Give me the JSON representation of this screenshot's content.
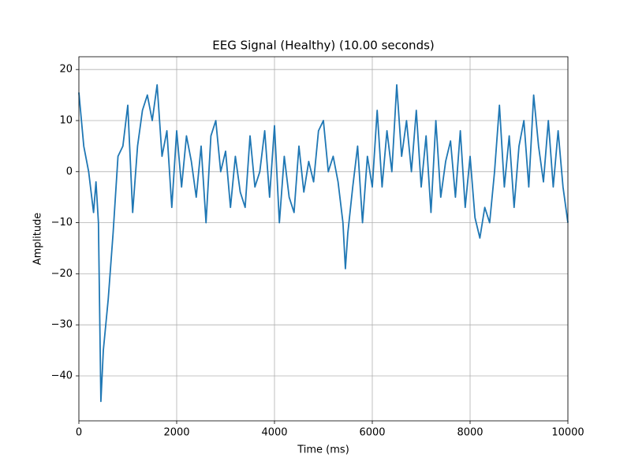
{
  "chart_data": {
    "type": "line",
    "title": "EEG Signal (Healthy) (10.00 seconds)",
    "x_label": "Time (ms)",
    "y_label": "Amplitude",
    "x": [
      0,
      100,
      200,
      300,
      350,
      400,
      450,
      500,
      600,
      700,
      800,
      900,
      1000,
      1100,
      1200,
      1300,
      1400,
      1500,
      1600,
      1700,
      1800,
      1900,
      2000,
      2100,
      2200,
      2300,
      2400,
      2500,
      2600,
      2700,
      2800,
      2900,
      3000,
      3100,
      3200,
      3300,
      3400,
      3500,
      3600,
      3700,
      3800,
      3900,
      4000,
      4100,
      4200,
      4300,
      4400,
      4500,
      4600,
      4700,
      4800,
      4900,
      5000,
      5100,
      5200,
      5300,
      5400,
      5450,
      5500,
      5600,
      5700,
      5800,
      5900,
      6000,
      6100,
      6200,
      6300,
      6400,
      6500,
      6600,
      6700,
      6800,
      6900,
      7000,
      7100,
      7200,
      7300,
      7400,
      7500,
      7600,
      7700,
      7800,
      7900,
      8000,
      8100,
      8200,
      8300,
      8400,
      8500,
      8600,
      8700,
      8800,
      8900,
      9000,
      9100,
      9200,
      9300,
      9400,
      9500,
      9600,
      9700,
      9800,
      9900,
      10000
    ],
    "series": [
      {
        "name": "EEG",
        "color": "#1f77b4",
        "values": [
          15.5,
          5,
          0,
          -8,
          -2,
          -10,
          -45,
          -35,
          -25,
          -12,
          3,
          5,
          13,
          -8,
          5,
          12,
          15,
          10,
          17,
          3,
          8,
          -7,
          8,
          -3,
          7,
          2,
          -5,
          5,
          -10,
          7,
          10,
          0,
          4,
          -7,
          3,
          -4,
          -7,
          7,
          -3,
          0,
          8,
          -5,
          9,
          -10,
          3,
          -5,
          -8,
          5,
          -4,
          2,
          -2,
          8,
          10,
          0,
          3,
          -2,
          -10,
          -19,
          -12,
          -3,
          5,
          -10,
          3,
          -3,
          12,
          -3,
          8,
          0,
          17,
          3,
          10,
          0,
          12,
          -3,
          7,
          -8,
          10,
          -5,
          2,
          6,
          -5,
          8,
          -7,
          3,
          -9,
          -13,
          -7,
          -10,
          0,
          13,
          -3,
          7,
          -7,
          5,
          10,
          -3,
          15,
          5,
          -2,
          10,
          -3,
          8,
          -3,
          -10
        ]
      }
    ],
    "xlim": [
      0,
      10000
    ],
    "ylim": [
      -48.8,
      22.5
    ],
    "xticks": [
      0,
      2000,
      4000,
      6000,
      8000,
      10000
    ],
    "yticks": [
      {
        "value": -40,
        "label": "−40"
      },
      {
        "value": -30,
        "label": "−30"
      },
      {
        "value": -20,
        "label": "−20"
      },
      {
        "value": -10,
        "label": "−10"
      },
      0,
      10,
      20
    ],
    "grid": true
  }
}
